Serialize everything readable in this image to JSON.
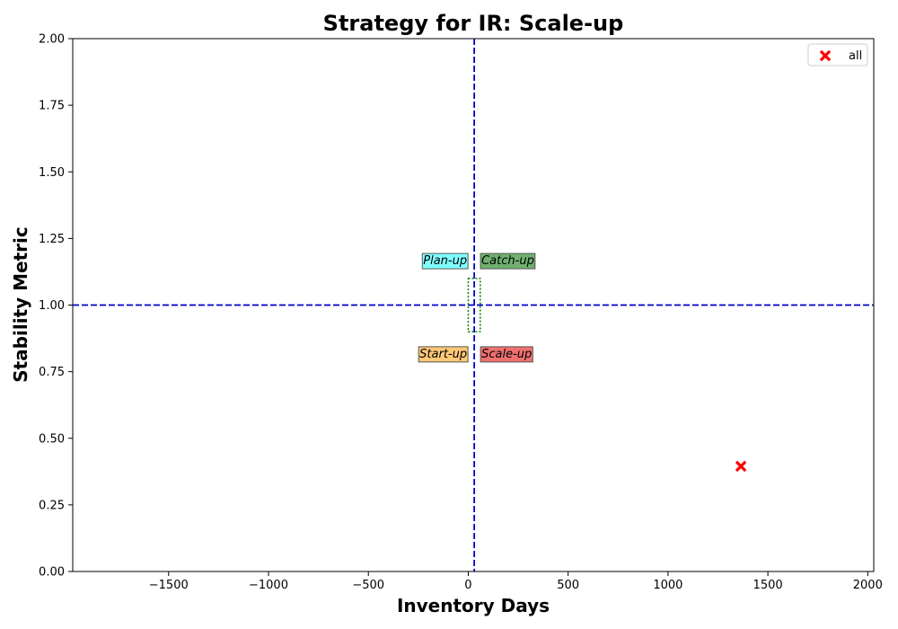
{
  "chart_data": {
    "type": "scatter",
    "title": "Strategy for IR: Scale-up",
    "xlabel": "Inventory Days",
    "ylabel": "Stability Metric",
    "xlim": [
      -1980,
      2030
    ],
    "ylim": [
      0,
      2
    ],
    "xticks": [
      -1500,
      -1000,
      -500,
      0,
      500,
      1000,
      1500,
      2000
    ],
    "xtick_labels": [
      "−1500",
      "−1000",
      "−500",
      "0",
      "500",
      "1000",
      "1500",
      "2000"
    ],
    "yticks": [
      0,
      0.25,
      0.5,
      0.75,
      1.0,
      1.25,
      1.5,
      1.75,
      2.0
    ],
    "ytick_labels": [
      "0.00",
      "0.25",
      "0.50",
      "0.75",
      "1.00",
      "1.25",
      "1.50",
      "1.75",
      "2.00"
    ],
    "grid": false,
    "legend_position": "top-right",
    "series": [
      {
        "name": "all",
        "marker": "x",
        "color": "#ff0000",
        "points": [
          {
            "x": 1365,
            "y": 0.395
          }
        ]
      }
    ],
    "reference_lines": {
      "vertical_x": 30,
      "horizontal_y": 1.0,
      "color": "#0000cc",
      "style": "dashed"
    },
    "target_box": {
      "x_range": [
        0,
        60
      ],
      "y_range": [
        0.9,
        1.1
      ],
      "color": "#008000",
      "style": "dotted"
    },
    "quadrant_labels": [
      {
        "text": "Plan-up",
        "x": 30,
        "y": 1.17,
        "side": "left",
        "color": "#80ffff"
      },
      {
        "text": "Catch-up",
        "x": 30,
        "y": 1.17,
        "side": "right",
        "color": "#70b070"
      },
      {
        "text": "Start-up",
        "x": 30,
        "y": 0.82,
        "side": "left",
        "color": "#ffc878"
      },
      {
        "text": "Scale-up",
        "x": 30,
        "y": 0.82,
        "side": "right",
        "color": "#f07070"
      }
    ]
  }
}
